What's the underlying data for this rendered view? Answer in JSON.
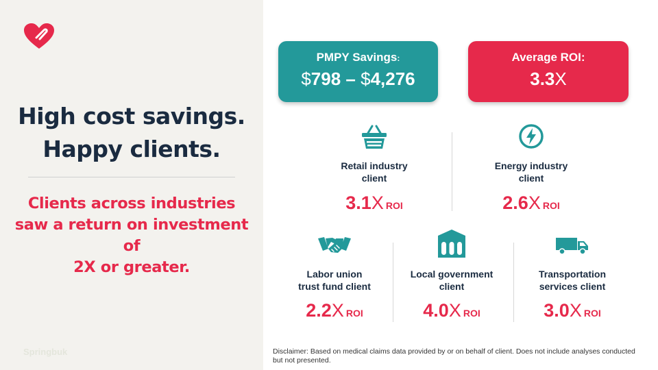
{
  "left": {
    "headline_line1": "High cost savings.",
    "headline_line2": "Happy clients.",
    "subhead_line1": "Clients across industries",
    "subhead_line2": "saw a return on investment of",
    "subhead_line3": "2X or greater.",
    "watermark": "Springbuk"
  },
  "cards": {
    "pmpy_label": "PMPY Savings",
    "pmpy_colon": ":",
    "pmpy_d1": "$",
    "pmpy_v1": "798",
    "pmpy_sep": " – ",
    "pmpy_d2": "$",
    "pmpy_v2": "4,276",
    "roi_label": "Average ROI:",
    "roi_value": "3.3",
    "roi_x": "X"
  },
  "industries": {
    "retail": {
      "line1": "Retail industry",
      "line2": "client",
      "value": "3.1",
      "x": "X",
      "roi": "ROI"
    },
    "energy": {
      "line1": "Energy industry",
      "line2": "client",
      "value": "2.6",
      "x": "X",
      "roi": "ROI"
    },
    "labor": {
      "line1": "Labor union",
      "line2": "trust fund client",
      "value": "2.2",
      "x": "X",
      "roi": "ROI"
    },
    "government": {
      "line1": "Local government",
      "line2": "client",
      "value": "4.0",
      "x": "X",
      "roi": "ROI"
    },
    "transport": {
      "line1": "Transportation",
      "line2": "services client",
      "value": "3.0",
      "x": "X",
      "roi": "ROI"
    }
  },
  "disclaimer": "Disclaimer: Based on medical claims data provided by or on behalf of client. Does not include analyses conducted but not presented.",
  "colors": {
    "teal": "#23999a",
    "red": "#e6294b",
    "navy": "#1a2b40",
    "panel": "#f3f2ee"
  },
  "icons": [
    "heart-logo-icon",
    "basket-icon",
    "lightning-icon",
    "handshake-icon",
    "government-building-icon",
    "truck-icon"
  ]
}
